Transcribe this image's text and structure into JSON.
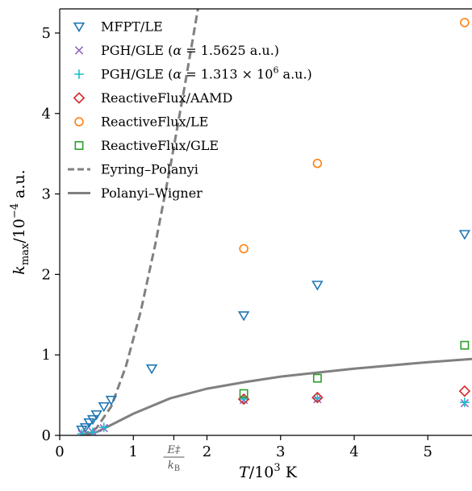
{
  "chart_data": {
    "type": "scatter",
    "title": "",
    "xlabel": "T/10³ K",
    "ylabel": "k_max/10⁻⁴ a.u.",
    "ylabel_main": "k",
    "ylabel_sub": "max",
    "ylabel_tail": "/10",
    "ylabel_sup": "−4",
    "ylabel_unit": " a.u.",
    "xlabel_main": "T",
    "xlabel_tail": "/10",
    "xlabel_sup": "3",
    "xlabel_unit": " K",
    "xlim": [
      0,
      5.6
    ],
    "ylim": [
      0,
      5.3
    ],
    "xticks": [
      0,
      1,
      2,
      3,
      4,
      5
    ],
    "xtick_labels": [
      "0",
      "1",
      "2",
      "3",
      "4",
      "5"
    ],
    "yticks": [
      0,
      1,
      2,
      3,
      4,
      5
    ],
    "ytick_labels": [
      "0",
      "1",
      "2",
      "3",
      "4",
      "5"
    ],
    "grid": false,
    "legend_position": "top-left",
    "annotation": {
      "x": 1.55,
      "text_num": "E‡",
      "text_den": "k",
      "text_den_sub": "B"
    },
    "series": [
      {
        "name": "MFPT/LE",
        "marker": "triangle-down",
        "color": "#1f77b4",
        "points": [
          [
            0.3,
            0.07
          ],
          [
            0.35,
            0.1
          ],
          [
            0.4,
            0.16
          ],
          [
            0.45,
            0.2
          ],
          [
            0.5,
            0.26
          ],
          [
            0.6,
            0.36
          ],
          [
            0.7,
            0.44
          ],
          [
            1.25,
            0.83
          ],
          [
            2.5,
            1.49
          ],
          [
            3.5,
            1.87
          ],
          [
            5.5,
            2.5
          ]
        ]
      },
      {
        "name": "PGH/GLE (α = 1.5625 a.u.)",
        "marker": "x",
        "color": "#9467bd",
        "points": [
          [
            0.3,
            0.02
          ],
          [
            0.45,
            0.04
          ],
          [
            0.6,
            0.09
          ],
          [
            2.5,
            0.44
          ],
          [
            3.5,
            0.45
          ],
          [
            5.5,
            0.4
          ]
        ]
      },
      {
        "name": "PGH/GLE (α = 1.313 × 10⁶ a.u.)",
        "marker": "plus",
        "color": "#17becf",
        "points": [
          [
            0.3,
            0.02
          ],
          [
            0.45,
            0.04
          ],
          [
            0.6,
            0.1
          ],
          [
            2.5,
            0.45
          ],
          [
            3.5,
            0.46
          ],
          [
            5.5,
            0.41
          ]
        ]
      },
      {
        "name": "ReactiveFlux/AAMD",
        "marker": "diamond",
        "color": "#d62728",
        "points": [
          [
            2.5,
            0.45
          ],
          [
            3.5,
            0.47
          ],
          [
            5.5,
            0.55
          ]
        ]
      },
      {
        "name": "ReactiveFlux/LE",
        "marker": "circle",
        "color": "#ff7f0e",
        "points": [
          [
            2.5,
            2.32
          ],
          [
            3.5,
            3.38
          ],
          [
            5.5,
            5.13
          ]
        ]
      },
      {
        "name": "ReactiveFlux/GLE",
        "marker": "square",
        "color": "#2ca02c",
        "points": [
          [
            2.5,
            0.52
          ],
          [
            3.5,
            0.71
          ],
          [
            5.5,
            1.12
          ]
        ]
      }
    ],
    "lines": [
      {
        "name": "Eyring–Polanyi",
        "style": "dashed",
        "color": "#808080",
        "points": [
          [
            0.3,
            0.0
          ],
          [
            0.5,
            0.09
          ],
          [
            0.7,
            0.36
          ],
          [
            0.9,
            0.86
          ],
          [
            1.1,
            1.54
          ],
          [
            1.3,
            2.38
          ],
          [
            1.5,
            3.33
          ],
          [
            1.7,
            4.35
          ],
          [
            1.9,
            5.42
          ]
        ]
      },
      {
        "name": "Polanyi–Wigner",
        "style": "solid",
        "color": "#808080",
        "points": [
          [
            0.3,
            0.0
          ],
          [
            0.5,
            0.04
          ],
          [
            0.7,
            0.13
          ],
          [
            1.0,
            0.27
          ],
          [
            1.5,
            0.46
          ],
          [
            2.0,
            0.58
          ],
          [
            2.5,
            0.66
          ],
          [
            3.0,
            0.73
          ],
          [
            3.5,
            0.78
          ],
          [
            4.0,
            0.83
          ],
          [
            4.5,
            0.87
          ],
          [
            5.0,
            0.91
          ],
          [
            5.6,
            0.95
          ]
        ]
      }
    ]
  }
}
